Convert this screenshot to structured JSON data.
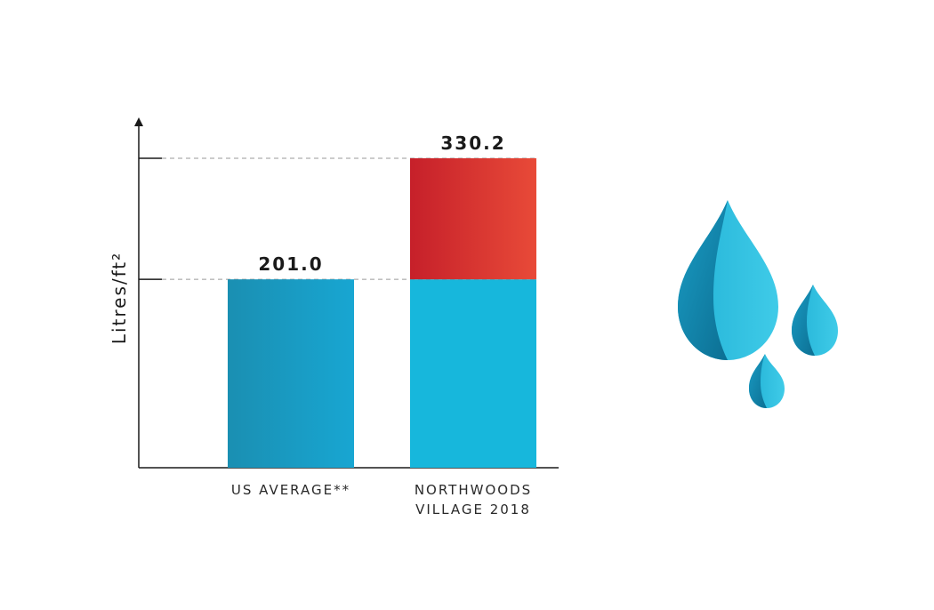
{
  "chart_data": {
    "type": "bar",
    "ylabel": "Litres/ft²",
    "categories": [
      "US AVERAGE**",
      "NORTHWOODS VILLAGE 2018"
    ],
    "category_lines": [
      [
        "US AVERAGE**"
      ],
      [
        "NORTHWOODS",
        "VILLAGE 2018"
      ]
    ],
    "values": [
      201.0,
      330.2
    ],
    "value_labels": [
      "201.0",
      "330.2"
    ],
    "ylim": [
      0,
      345
    ],
    "reference_lines": [
      201.0,
      330.2
    ],
    "grid": false,
    "legend": "none",
    "colors": {
      "us_bar_start": "#1a8fb2",
      "us_bar_end": "#18a6d2",
      "northwoods_base": "#17b7dc",
      "excess_start": "#c6202a",
      "excess_end": "#e84a38",
      "axis": "#1a1a1a",
      "dashed": "#9a9a9a"
    }
  },
  "illustration": {
    "icon": "water-drops-icon",
    "colors": [
      "#0e7fa3",
      "#24b6d8",
      "#3ec9e6"
    ]
  }
}
